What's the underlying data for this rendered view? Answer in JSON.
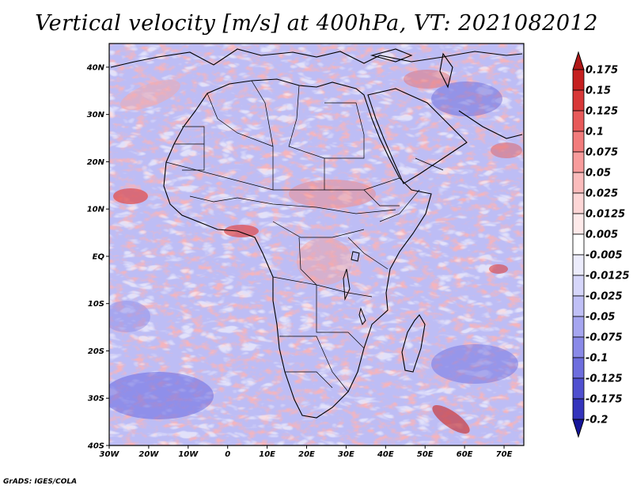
{
  "title": "Vertical velocity [m/s] at 400hPa, VT: 2021082012",
  "credit": "GrADS: IGES/COLA",
  "map": {
    "region": "Africa",
    "lon_range": [
      -30,
      75
    ],
    "lat_range": [
      -40,
      45
    ],
    "lon_ticks": [
      {
        "value": -30,
        "label": "30W"
      },
      {
        "value": -20,
        "label": "20W"
      },
      {
        "value": -10,
        "label": "10W"
      },
      {
        "value": 0,
        "label": "0"
      },
      {
        "value": 10,
        "label": "10E"
      },
      {
        "value": 20,
        "label": "20E"
      },
      {
        "value": 30,
        "label": "30E"
      },
      {
        "value": 40,
        "label": "40E"
      },
      {
        "value": 50,
        "label": "50E"
      },
      {
        "value": 60,
        "label": "60E"
      },
      {
        "value": 70,
        "label": "70E"
      }
    ],
    "lat_ticks": [
      {
        "value": 40,
        "label": "40N"
      },
      {
        "value": 30,
        "label": "30N"
      },
      {
        "value": 20,
        "label": "20N"
      },
      {
        "value": 10,
        "label": "10N"
      },
      {
        "value": 0,
        "label": "EQ"
      },
      {
        "value": -10,
        "label": "10S"
      },
      {
        "value": -20,
        "label": "20S"
      },
      {
        "value": -30,
        "label": "30S"
      },
      {
        "value": -40,
        "label": "40S"
      }
    ]
  },
  "colorbar": {
    "levels": [
      {
        "label": "0.175",
        "color": "#c62020"
      },
      {
        "label": "0.15",
        "color": "#d83838"
      },
      {
        "label": "0.125",
        "color": "#e85a5a"
      },
      {
        "label": "0.1",
        "color": "#f27c7c"
      },
      {
        "label": "0.075",
        "color": "#f89c9c"
      },
      {
        "label": "0.05",
        "color": "#fbbcbc"
      },
      {
        "label": "0.025",
        "color": "#fdd6d6"
      },
      {
        "label": "0.0125",
        "color": "#feeaea"
      },
      {
        "label": "0.005",
        "color": "#ffffff"
      },
      {
        "label": "-0.005",
        "color": "#ececfc"
      },
      {
        "label": "-0.0125",
        "color": "#d6d6fa"
      },
      {
        "label": "-0.025",
        "color": "#c0c0f6"
      },
      {
        "label": "-0.05",
        "color": "#a6a6f0"
      },
      {
        "label": "-0.075",
        "color": "#8a8ae8"
      },
      {
        "label": "-0.1",
        "color": "#6e6ede"
      },
      {
        "label": "-0.125",
        "color": "#5050d0"
      },
      {
        "label": "-0.175",
        "color": "#3434bc"
      },
      {
        "label": "-0.2",
        "color": "#1e1ea8"
      }
    ],
    "top_triangle_color": "#b01818",
    "bottom_triangle_color": "#15159a"
  }
}
